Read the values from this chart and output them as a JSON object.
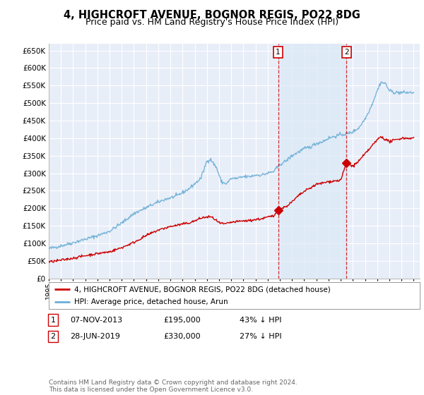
{
  "title": "4, HIGHCROFT AVENUE, BOGNOR REGIS, PO22 8DG",
  "subtitle": "Price paid vs. HM Land Registry's House Price Index (HPI)",
  "ylim": [
    0,
    670000
  ],
  "yticks": [
    0,
    50000,
    100000,
    150000,
    200000,
    250000,
    300000,
    350000,
    400000,
    450000,
    500000,
    550000,
    600000,
    650000
  ],
  "xlim_start": 1995.0,
  "xlim_end": 2025.5,
  "background_color": "#ffffff",
  "plot_bg_color": "#e8eef8",
  "grid_color": "#ffffff",
  "hpi_color": "#6baed6",
  "price_color": "#cc0000",
  "transaction1_x": 2013.854,
  "transaction1_y": 195000,
  "transaction2_x": 2019.486,
  "transaction2_y": 330000,
  "legend_label1": "4, HIGHCROFT AVENUE, BOGNOR REGIS, PO22 8DG (detached house)",
  "legend_label2": "HPI: Average price, detached house, Arun",
  "table_rows": [
    {
      "num": "1",
      "date": "07-NOV-2013",
      "price": "£195,000",
      "pct": "43% ↓ HPI"
    },
    {
      "num": "2",
      "date": "28-JUN-2019",
      "price": "£330,000",
      "pct": "27% ↓ HPI"
    }
  ],
  "footer": "Contains HM Land Registry data © Crown copyright and database right 2024.\nThis data is licensed under the Open Government Licence v3.0.",
  "title_fontsize": 10.5,
  "subtitle_fontsize": 9,
  "axis_fontsize": 7.5
}
